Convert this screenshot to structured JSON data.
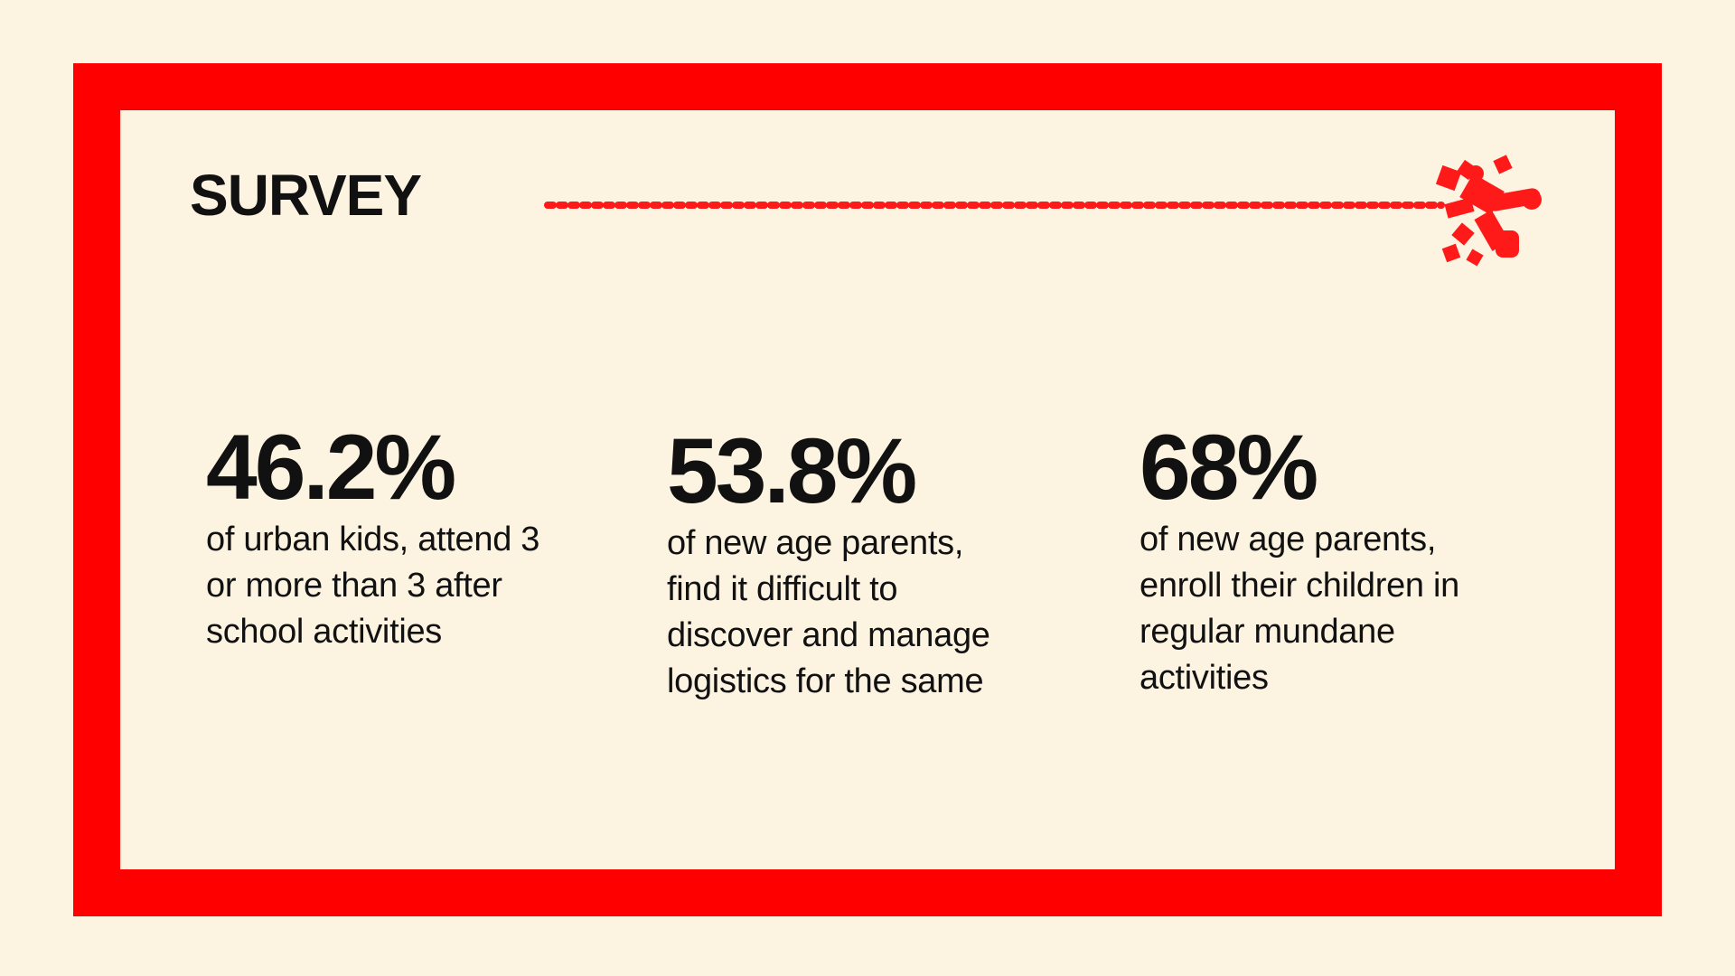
{
  "header": {
    "title": "SURVEY"
  },
  "stats": [
    {
      "value": "46.2%",
      "description": [
        "of urban kids, attend 3",
        "or more than 3 after",
        "school activities"
      ]
    },
    {
      "value": "53.8%",
      "description": [
        "of new age parents,",
        "find it difficult to",
        "discover and manage",
        "logistics for the same"
      ]
    },
    {
      "value": "68%",
      "description": [
        "of new age parents,",
        "enroll their children in",
        "regular mundane",
        "activities"
      ]
    }
  ]
}
